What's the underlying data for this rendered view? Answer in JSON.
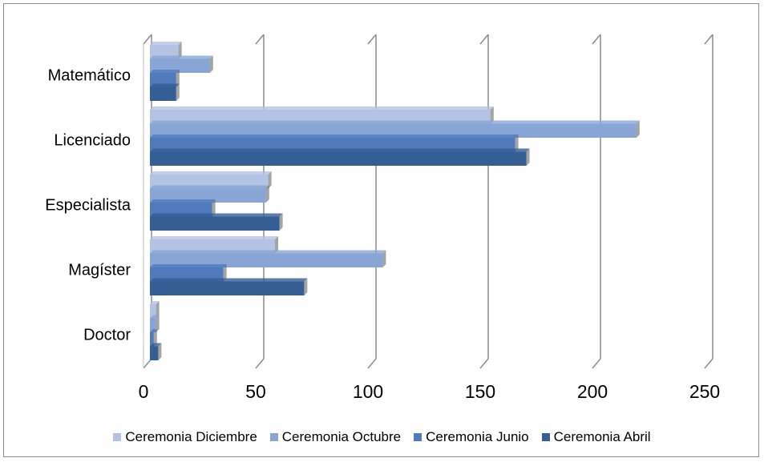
{
  "chart_data": {
    "type": "bar",
    "orientation": "horizontal",
    "style": "3d-clustered",
    "categories": [
      "Doctor",
      "Magíster",
      "Especialista",
      "Licenciado",
      "Matemático"
    ],
    "series": [
      {
        "name": "Ceremonia Diciembre",
        "color": "#b4c3e3",
        "values": [
          2,
          55,
          52,
          151,
          12
        ]
      },
      {
        "name": "Ceremonia Octubre",
        "color": "#88a5d6",
        "values": [
          2,
          103,
          51,
          216,
          26
        ]
      },
      {
        "name": "Ceremonia Junio",
        "color": "#4f7bbd",
        "values": [
          1,
          32,
          27,
          162,
          11
        ]
      },
      {
        "name": "Ceremonia Abril",
        "color": "#355e95",
        "values": [
          3,
          68,
          57,
          167,
          11
        ]
      }
    ],
    "xlim": [
      0,
      250
    ],
    "xticks": [
      "0",
      "50",
      "100",
      "150",
      "200",
      "250"
    ],
    "grid": true,
    "legend_position": "bottom"
  }
}
